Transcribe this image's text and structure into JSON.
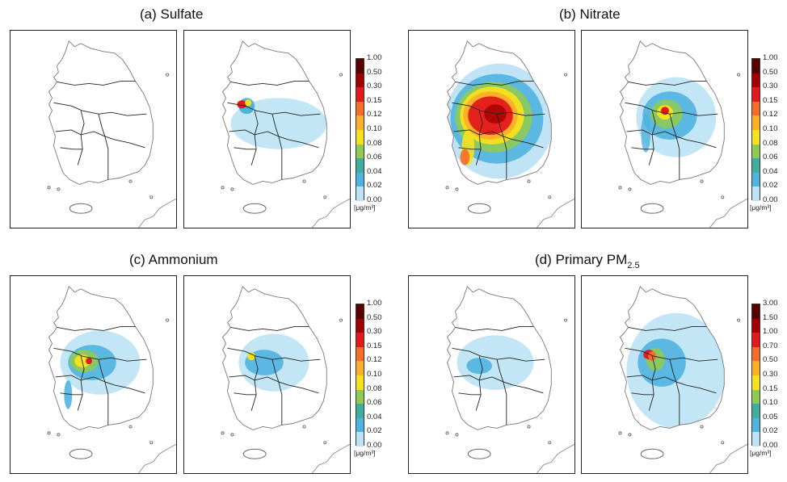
{
  "panels": [
    {
      "title": "(a) Sulfate",
      "legend": {
        "ticks": [
          "1.00",
          "0.50",
          "0.30",
          "0.15",
          "0.12",
          "0.10",
          "0.08",
          "0.06",
          "0.04",
          "0.02",
          "0.00"
        ],
        "colors": [
          "#5a0000",
          "#a20000",
          "#e31a1c",
          "#f46d2b",
          "#fdae2a",
          "#f5e21c",
          "#8fca55",
          "#3fae9c",
          "#4fb3e0",
          "#bde3f5"
        ],
        "unit": "[μg/m³]"
      }
    },
    {
      "title": "(b) Nitrate",
      "legend": {
        "ticks": [
          "1.00",
          "0.50",
          "0.30",
          "0.15",
          "0.12",
          "0.10",
          "0.08",
          "0.06",
          "0.04",
          "0.02",
          "0.00"
        ],
        "colors": [
          "#5a0000",
          "#a20000",
          "#e31a1c",
          "#f46d2b",
          "#fdae2a",
          "#f5e21c",
          "#8fca55",
          "#3fae9c",
          "#4fb3e0",
          "#bde3f5"
        ],
        "unit": "[μg/m³]"
      }
    },
    {
      "title": "(c) Ammonium",
      "legend": {
        "ticks": [
          "1.00",
          "0.50",
          "0.30",
          "0.15",
          "0.12",
          "0.10",
          "0.08",
          "0.06",
          "0.04",
          "0.02",
          "0.00"
        ],
        "colors": [
          "#5a0000",
          "#a20000",
          "#e31a1c",
          "#f46d2b",
          "#fdae2a",
          "#f5e21c",
          "#8fca55",
          "#3fae9c",
          "#4fb3e0",
          "#bde3f5"
        ],
        "unit": "[μg/m³]"
      }
    },
    {
      "title_main": "(d) Primary PM",
      "title_sub": "2.5",
      "legend": {
        "ticks": [
          "3.00",
          "1.50",
          "1.00",
          "0.70",
          "0.50",
          "0.30",
          "0.15",
          "0.10",
          "0.05",
          "0.02",
          "0.00"
        ],
        "colors": [
          "#5a0000",
          "#a20000",
          "#e31a1c",
          "#f46d2b",
          "#fdae2a",
          "#f5e21c",
          "#8fca55",
          "#3fae9c",
          "#4fb3e0",
          "#bde3f5"
        ],
        "unit": "[μg/m³]"
      }
    }
  ]
}
